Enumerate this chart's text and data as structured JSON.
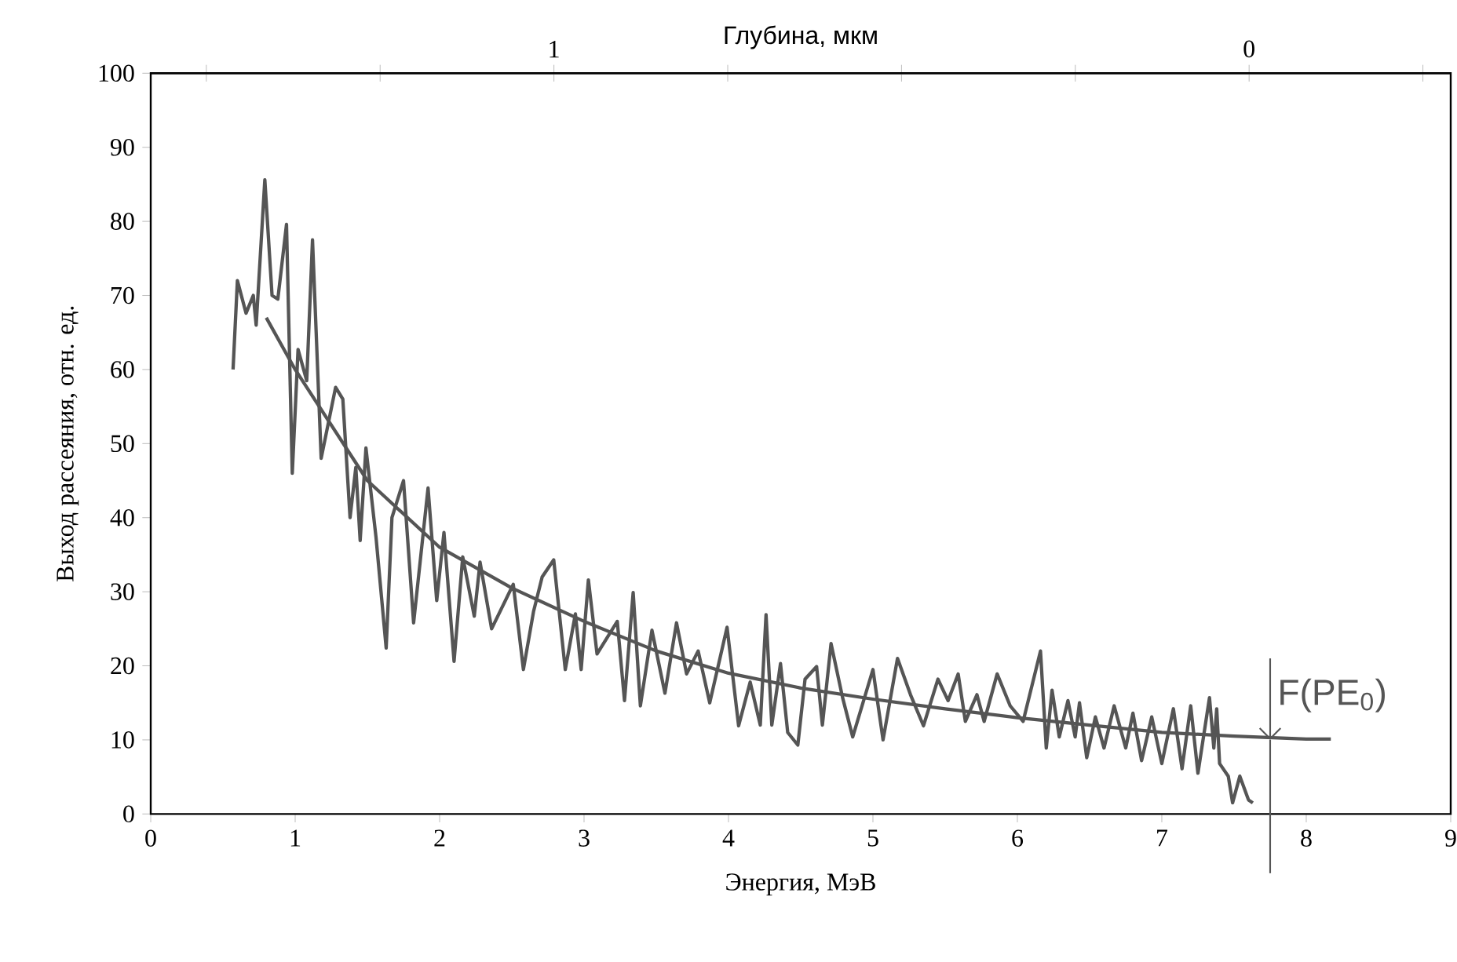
{
  "chart_data": {
    "type": "line",
    "xlabel": "Энергия, МэВ",
    "ylabel": "Выход рассеяния, отн. ед.",
    "x2label": "Глубина, мкм",
    "xlim": [
      0,
      9
    ],
    "xticks": [
      0,
      1,
      2,
      3,
      4,
      5,
      6,
      7,
      8,
      9
    ],
    "ylim": [
      0,
      100
    ],
    "yticks": [
      0,
      10,
      20,
      30,
      40,
      50,
      60,
      70,
      80,
      90,
      100
    ],
    "x2lim": [
      1.58,
      -0.29
    ],
    "x2ticks": [
      {
        "value": 1.5,
        "label": null
      },
      {
        "value": 1.25,
        "label": null
      },
      1,
      {
        "value": 0.75,
        "label": null
      },
      {
        "value": 0.5,
        "label": null
      },
      {
        "value": 0.25,
        "label": null
      },
      0,
      {
        "value": -0.25,
        "label": null
      }
    ],
    "grid": false,
    "marker": "none",
    "line_style": "solid",
    "series": [
      {
        "color": "#555555",
        "x": [
          0.57,
          0.6,
          0.66,
          0.71,
          0.73,
          0.79,
          0.84,
          0.88,
          0.94,
          0.98,
          1.02,
          1.08,
          1.12,
          1.18,
          1.28,
          1.33,
          1.38,
          1.42,
          1.45,
          1.49,
          1.56,
          1.63,
          1.67,
          1.75,
          1.82,
          1.92,
          1.98,
          2.03,
          2.1,
          2.16,
          2.24,
          2.28,
          2.36,
          2.51,
          2.58,
          2.65,
          2.71,
          2.79,
          2.87,
          2.94,
          2.98,
          3.03,
          3.09,
          3.23,
          3.28,
          3.34,
          3.39,
          3.47,
          3.56,
          3.64,
          3.71,
          3.79,
          3.87,
          3.99,
          4.07,
          4.15,
          4.22,
          4.26,
          4.3,
          4.36,
          4.41,
          4.48,
          4.53,
          4.61,
          4.65,
          4.71,
          4.79,
          4.86,
          5.0,
          5.07,
          5.17,
          5.26,
          5.35,
          5.45,
          5.52,
          5.59,
          5.64,
          5.72,
          5.77,
          5.86,
          5.95,
          6.04,
          6.16,
          6.2,
          6.24,
          6.29,
          6.35,
          6.4,
          6.43,
          6.48,
          6.54,
          6.6,
          6.67,
          6.75,
          6.8,
          6.86,
          6.93,
          7.0,
          7.08,
          7.14,
          7.2,
          7.25,
          7.33,
          7.36,
          7.38,
          7.4,
          7.46,
          7.49,
          7.54,
          7.6,
          7.63
        ],
        "values": [
          60,
          72,
          67.6,
          70,
          66,
          85.6,
          70,
          69.5,
          79.6,
          46,
          62.7,
          58.5,
          77.5,
          48,
          57.6,
          56,
          40,
          46.8,
          36.9,
          49.4,
          37.3,
          22.4,
          40,
          45,
          25.8,
          44,
          28.8,
          38,
          20.6,
          34.7,
          26.7,
          34,
          25,
          31,
          19.5,
          27.3,
          32,
          34.3,
          19.5,
          27,
          19.5,
          31.6,
          21.6,
          26,
          15.3,
          29.9,
          14.6,
          24.8,
          16.3,
          25.8,
          18.9,
          22,
          15,
          25.2,
          11.9,
          17.8,
          12,
          26.9,
          12,
          20.3,
          11,
          9.3,
          18.2,
          19.9,
          12,
          23,
          15.7,
          10.4,
          19.5,
          10,
          21,
          16.1,
          11.9,
          18.2,
          15.3,
          18.9,
          12.5,
          16.1,
          12.5,
          18.9,
          14.6,
          12.5,
          22,
          8.9,
          16.7,
          10.4,
          15.3,
          10.4,
          15,
          7.6,
          13.1,
          8.9,
          14.6,
          8.9,
          13.6,
          7.2,
          13.1,
          6.8,
          14.2,
          6.1,
          14.6,
          5.5,
          15.7,
          8.9,
          14.2,
          6.8,
          5.1,
          1.5,
          5.1,
          1.9,
          1.5
        ]
      },
      {
        "color": "#555555",
        "x": [
          0.8,
          1,
          1.5,
          2,
          2.5,
          3,
          3.5,
          4,
          4.5,
          5,
          5.5,
          6,
          6.5,
          7,
          7.5,
          8,
          8.17
        ],
        "values": [
          67,
          60,
          45,
          36,
          30.5,
          26,
          22,
          19,
          17,
          15.5,
          14.2,
          13,
          12,
          11,
          10.5,
          10.1,
          10.1
        ]
      }
    ],
    "ref_lines": [
      {
        "axis": "x",
        "value": 7.75,
        "label": "F(PE$_{0}$)",
        "color": "#555555"
      }
    ]
  }
}
